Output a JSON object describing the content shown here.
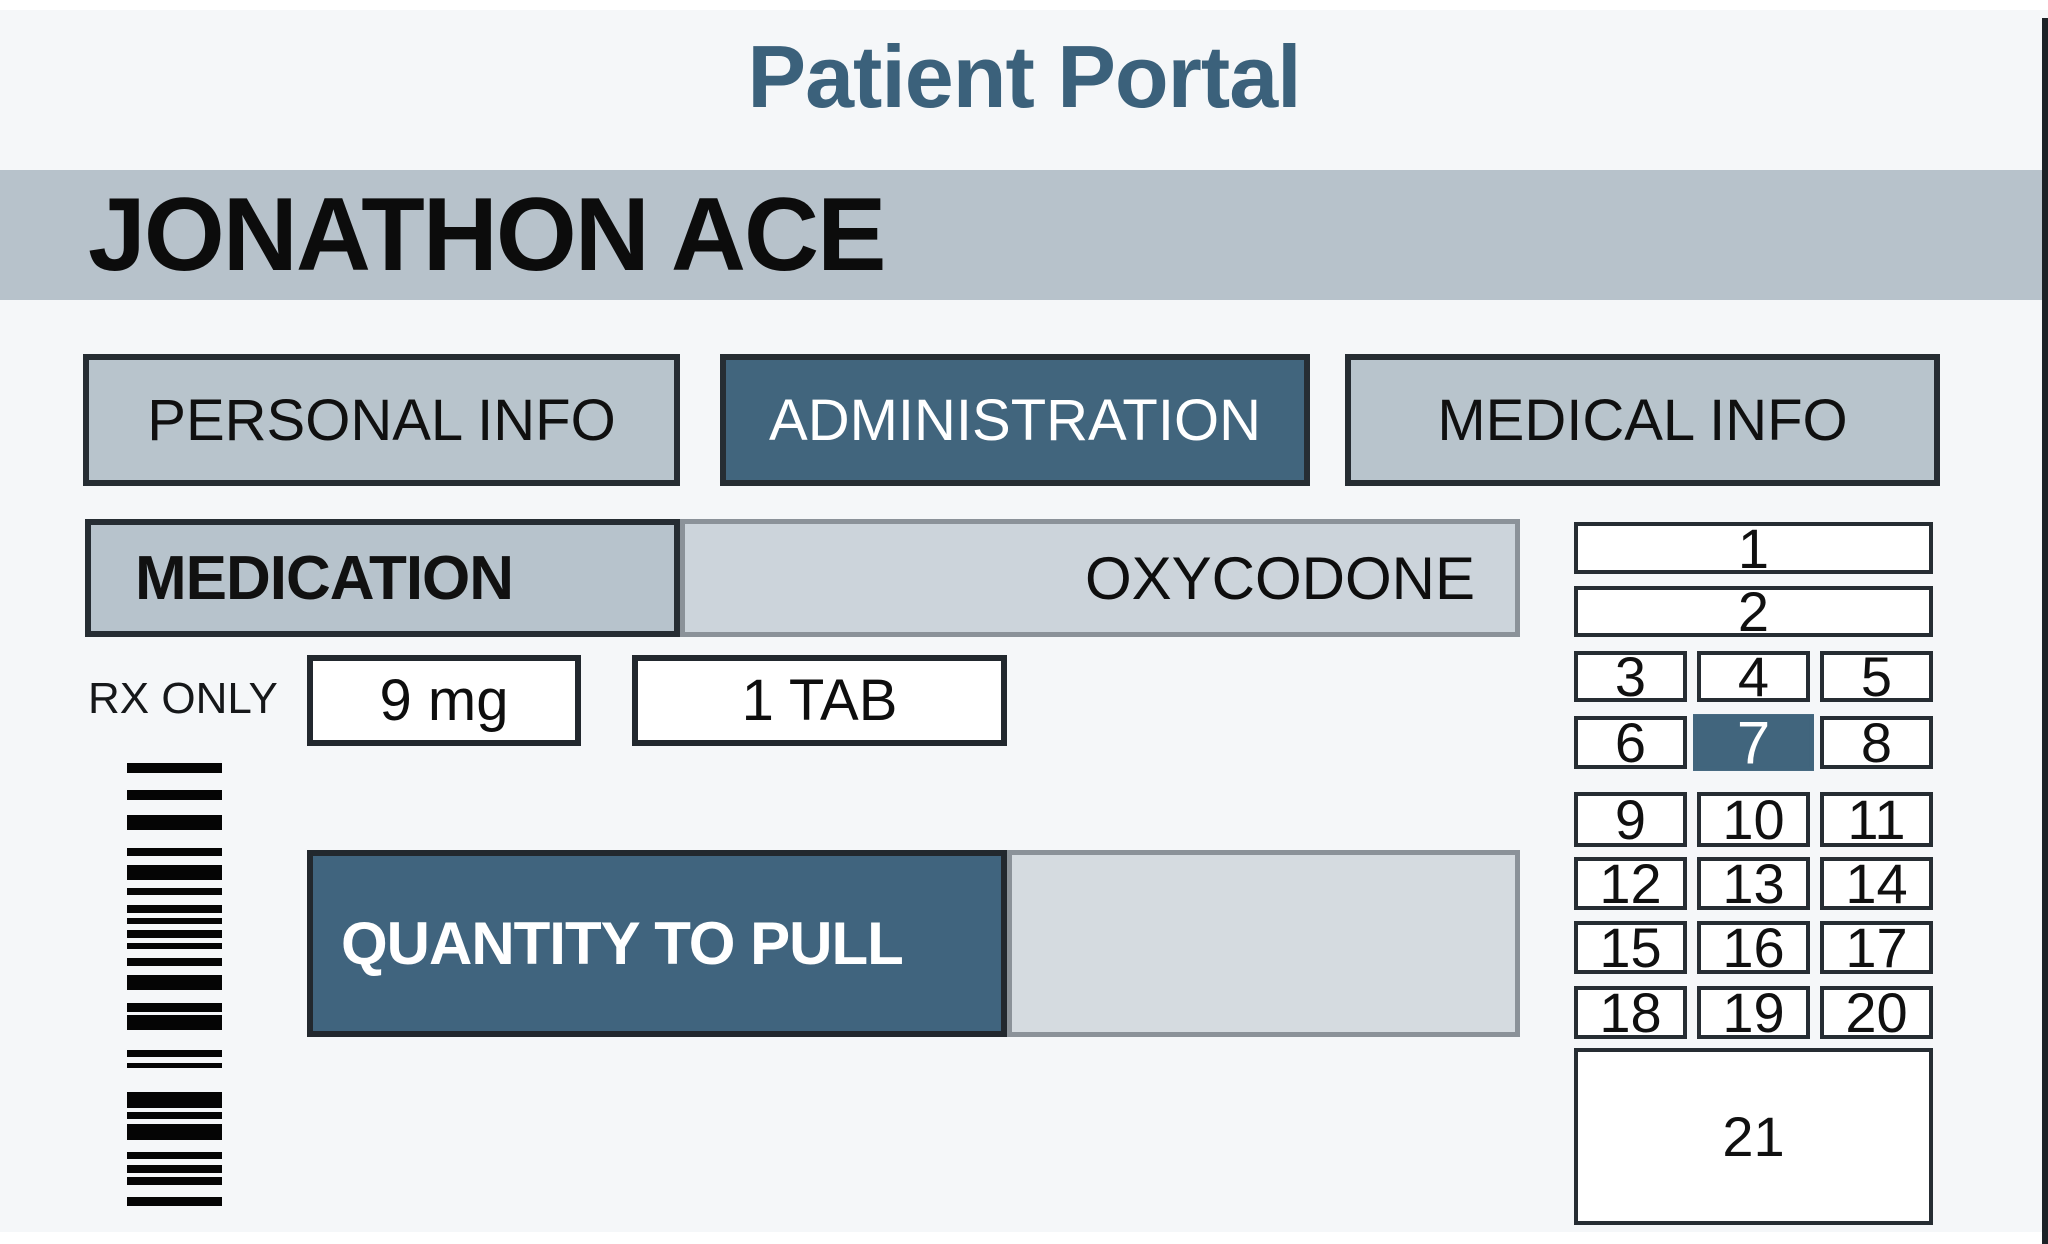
{
  "header": {
    "title": "Patient Portal"
  },
  "patient": {
    "name": "JONATHON ACE"
  },
  "tabs": [
    {
      "label": "PERSONAL INFO",
      "active": false
    },
    {
      "label": "ADMINISTRATION",
      "active": true
    },
    {
      "label": "MEDICAL INFO",
      "active": false
    }
  ],
  "medication": {
    "field_label": "MEDICATION",
    "value": "OXYCODONE"
  },
  "rx": {
    "label": "RX ONLY",
    "dose": "9 mg",
    "tab_count": "1 TAB"
  },
  "quantity": {
    "label": "QUANTITY TO PULL",
    "value": ""
  },
  "keypad": {
    "keys": [
      "1",
      "2",
      "3",
      "4",
      "5",
      "6",
      "7",
      "8",
      "9",
      "10",
      "11",
      "12",
      "13",
      "14",
      "15",
      "16",
      "17",
      "18",
      "19",
      "20",
      "21"
    ],
    "selected_key": "7"
  },
  "colors": {
    "accent_blue": "#41657d",
    "band_gray": "#b7c2cb",
    "cell_gray": "#ccd4db",
    "value_gray": "#d5dbe0",
    "border_dark": "#262d33",
    "border_gray": "#8b9299",
    "title_blue": "#3b617b",
    "background": "#f5f7f9"
  },
  "barcode": {
    "bars": [
      [
        10,
        17
      ],
      [
        10,
        15
      ],
      [
        15,
        18
      ],
      [
        8,
        9
      ],
      [
        15,
        8
      ],
      [
        7,
        10
      ],
      [
        8,
        5
      ],
      [
        6,
        6
      ],
      [
        8,
        5
      ],
      [
        6,
        9
      ],
      [
        8,
        9
      ],
      [
        15,
        13
      ],
      [
        9,
        3
      ],
      [
        15,
        20
      ],
      [
        7,
        6
      ],
      [
        5,
        24
      ],
      [
        16,
        4
      ],
      [
        7,
        5
      ],
      [
        16,
        12
      ],
      [
        7,
        6
      ],
      [
        8,
        4
      ],
      [
        8,
        12
      ],
      [
        9,
        0
      ]
    ]
  }
}
